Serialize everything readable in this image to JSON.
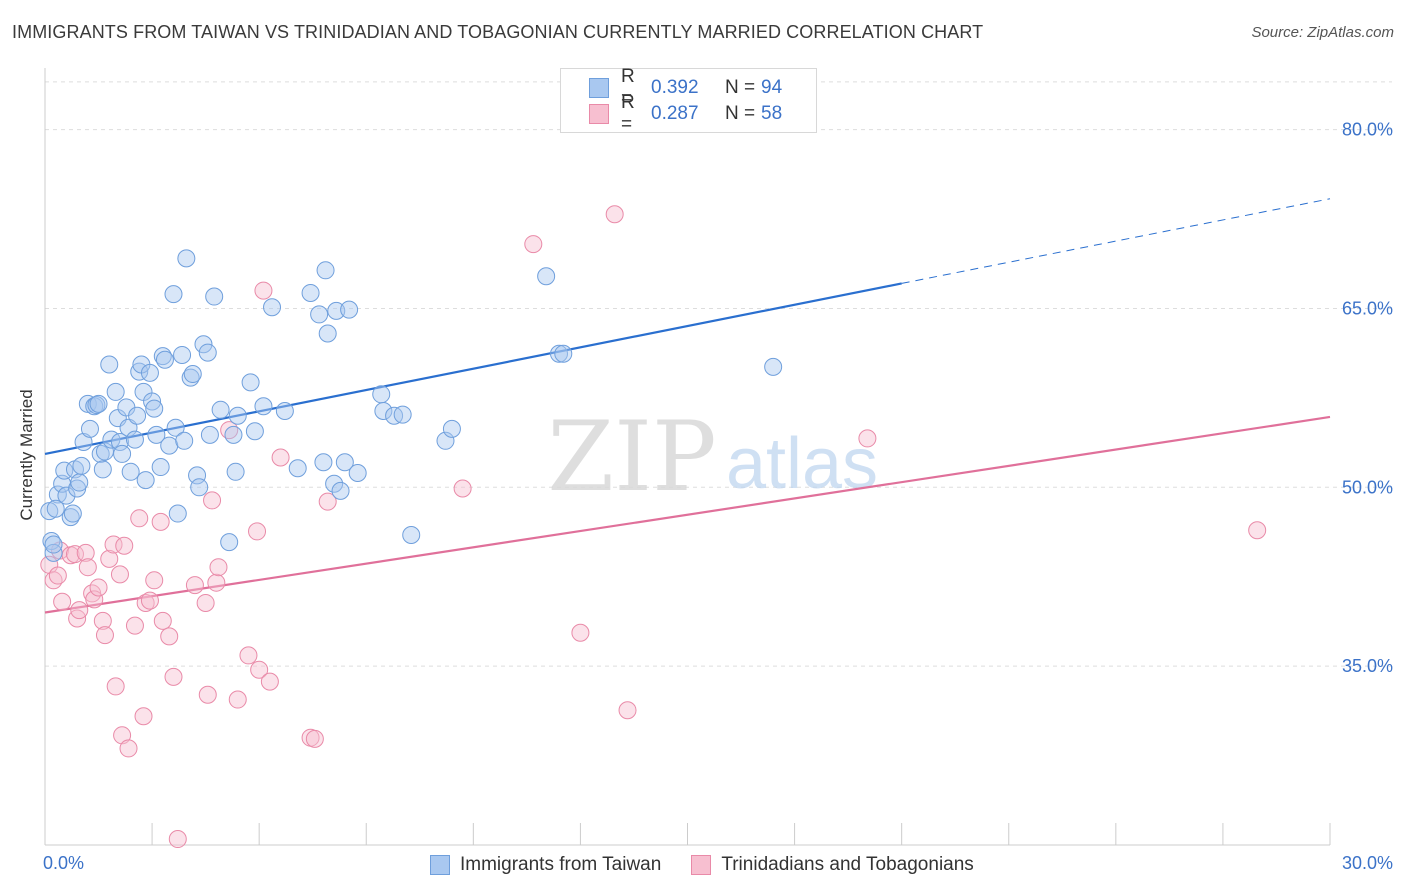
{
  "header": {
    "title": "IMMIGRANTS FROM TAIWAN VS TRINIDADIAN AND TOBAGONIAN CURRENTLY MARRIED CORRELATION CHART",
    "source": "Source: ZipAtlas.com"
  },
  "watermark": {
    "zip": "ZIP",
    "atlas": "atlas"
  },
  "stats_legend": {
    "r_label": "R =",
    "n_label": "N =",
    "rows": [
      {
        "r": "0.392",
        "n": "94"
      },
      {
        "r": "0.287",
        "n": "58"
      }
    ]
  },
  "colors": {
    "taiwan_fill": "#a9c8f0",
    "taiwan_stroke": "#6f9fdc",
    "taiwan_line": "#2a6fcf",
    "trin_fill": "#f7bfd0",
    "trin_stroke": "#e98aa8",
    "trin_line": "#e0709a",
    "axis_text": "#3b72c8",
    "grid": "#dddddd"
  },
  "chart_data": {
    "type": "scatter",
    "title": "IMMIGRANTS FROM TAIWAN VS TRINIDADIAN AND TOBAGONIAN CURRENTLY MARRIED CORRELATION CHART",
    "xlabel": "",
    "ylabel": "Currently Married",
    "xlim": [
      0,
      30
    ],
    "ylim": [
      20,
      85
    ],
    "x_tick_labels": [
      "0.0%",
      "30.0%"
    ],
    "y_ticks": [
      35,
      50,
      65,
      80
    ],
    "y_tick_labels": [
      "35.0%",
      "50.0%",
      "65.0%",
      "80.0%"
    ],
    "grid": true,
    "legend_position": "bottom",
    "series": [
      {
        "name": "Immigrants from Taiwan",
        "color": "#a9c8f0",
        "trend": {
          "x": [
            0,
            20
          ],
          "y": [
            52.8,
            67.1
          ],
          "dashed_extension": {
            "x": [
              20,
              30
            ],
            "y": [
              67.1,
              74.2
            ]
          }
        },
        "points": [
          [
            0.1,
            48.0
          ],
          [
            0.15,
            45.5
          ],
          [
            0.2,
            44.5
          ],
          [
            0.2,
            45.2
          ],
          [
            0.3,
            49.4
          ],
          [
            0.4,
            50.3
          ],
          [
            0.45,
            51.4
          ],
          [
            0.5,
            49.3
          ],
          [
            0.6,
            47.5
          ],
          [
            0.65,
            47.8
          ],
          [
            0.7,
            51.5
          ],
          [
            0.75,
            49.9
          ],
          [
            0.8,
            50.4
          ],
          [
            0.85,
            51.8
          ],
          [
            0.9,
            53.8
          ],
          [
            1.0,
            57.0
          ],
          [
            1.05,
            54.9
          ],
          [
            1.15,
            56.8
          ],
          [
            1.2,
            56.9
          ],
          [
            1.3,
            52.8
          ],
          [
            1.35,
            51.5
          ],
          [
            1.4,
            53.0
          ],
          [
            1.5,
            60.3
          ],
          [
            1.55,
            54.0
          ],
          [
            1.65,
            58.0
          ],
          [
            1.7,
            55.8
          ],
          [
            1.75,
            53.8
          ],
          [
            1.8,
            52.8
          ],
          [
            1.9,
            56.7
          ],
          [
            1.95,
            55.0
          ],
          [
            2.0,
            51.3
          ],
          [
            2.1,
            54.0
          ],
          [
            2.2,
            59.7
          ],
          [
            2.25,
            60.3
          ],
          [
            2.3,
            58.0
          ],
          [
            2.35,
            50.6
          ],
          [
            2.45,
            59.6
          ],
          [
            2.5,
            57.2
          ],
          [
            2.55,
            56.6
          ],
          [
            2.6,
            54.4
          ],
          [
            2.7,
            51.7
          ],
          [
            2.75,
            61.0
          ],
          [
            2.8,
            60.7
          ],
          [
            2.9,
            53.5
          ],
          [
            3.0,
            66.2
          ],
          [
            3.05,
            55.0
          ],
          [
            3.1,
            47.8
          ],
          [
            3.2,
            61.1
          ],
          [
            3.25,
            53.9
          ],
          [
            3.3,
            69.2
          ],
          [
            3.4,
            59.2
          ],
          [
            3.45,
            59.5
          ],
          [
            3.55,
            51.0
          ],
          [
            3.6,
            50.0
          ],
          [
            3.7,
            62.0
          ],
          [
            3.8,
            61.3
          ],
          [
            3.85,
            54.4
          ],
          [
            3.95,
            66.0
          ],
          [
            4.1,
            56.5
          ],
          [
            4.3,
            45.4
          ],
          [
            4.4,
            54.4
          ],
          [
            4.45,
            51.3
          ],
          [
            4.5,
            56.0
          ],
          [
            4.8,
            58.8
          ],
          [
            4.9,
            54.7
          ],
          [
            5.1,
            56.8
          ],
          [
            5.3,
            65.1
          ],
          [
            5.6,
            56.4
          ],
          [
            5.9,
            51.6
          ],
          [
            6.2,
            66.3
          ],
          [
            6.4,
            64.5
          ],
          [
            6.5,
            52.1
          ],
          [
            6.55,
            68.2
          ],
          [
            6.6,
            62.9
          ],
          [
            6.75,
            50.3
          ],
          [
            6.8,
            64.8
          ],
          [
            6.9,
            49.7
          ],
          [
            7.0,
            52.1
          ],
          [
            7.1,
            64.9
          ],
          [
            7.3,
            51.2
          ],
          [
            7.85,
            57.8
          ],
          [
            7.9,
            56.4
          ],
          [
            8.15,
            56.0
          ],
          [
            8.35,
            56.1
          ],
          [
            8.55,
            46.0
          ],
          [
            9.35,
            53.9
          ],
          [
            9.5,
            54.9
          ],
          [
            11.7,
            67.7
          ],
          [
            12.0,
            61.2
          ],
          [
            12.1,
            61.2
          ],
          [
            17.0,
            60.1
          ],
          [
            0.25,
            48.2
          ],
          [
            1.25,
            57.0
          ],
          [
            2.15,
            56.0
          ]
        ]
      },
      {
        "name": "Trinidadians and Tobagonians",
        "color": "#f7bfd0",
        "trend": {
          "x": [
            0,
            30
          ],
          "y": [
            39.5,
            55.9
          ]
        },
        "points": [
          [
            0.1,
            43.5
          ],
          [
            0.2,
            42.2
          ],
          [
            0.3,
            42.6
          ],
          [
            0.35,
            44.7
          ],
          [
            0.4,
            40.4
          ],
          [
            0.6,
            44.3
          ],
          [
            0.7,
            44.4
          ],
          [
            0.75,
            39.0
          ],
          [
            0.8,
            39.7
          ],
          [
            0.95,
            44.5
          ],
          [
            1.0,
            43.3
          ],
          [
            1.1,
            41.1
          ],
          [
            1.15,
            40.6
          ],
          [
            1.25,
            41.6
          ],
          [
            1.35,
            38.8
          ],
          [
            1.4,
            37.6
          ],
          [
            1.5,
            44.0
          ],
          [
            1.6,
            45.2
          ],
          [
            1.65,
            33.3
          ],
          [
            1.75,
            42.7
          ],
          [
            1.8,
            29.2
          ],
          [
            1.85,
            45.1
          ],
          [
            1.95,
            28.1
          ],
          [
            2.1,
            38.4
          ],
          [
            2.2,
            47.4
          ],
          [
            2.3,
            30.8
          ],
          [
            2.35,
            40.3
          ],
          [
            2.45,
            40.5
          ],
          [
            2.55,
            42.2
          ],
          [
            2.7,
            47.1
          ],
          [
            2.75,
            38.8
          ],
          [
            2.9,
            37.5
          ],
          [
            3.0,
            34.1
          ],
          [
            3.1,
            20.5
          ],
          [
            3.5,
            41.8
          ],
          [
            3.75,
            40.3
          ],
          [
            3.8,
            32.6
          ],
          [
            3.9,
            48.9
          ],
          [
            4.0,
            42.0
          ],
          [
            4.05,
            43.3
          ],
          [
            4.3,
            54.8
          ],
          [
            4.5,
            32.2
          ],
          [
            4.75,
            35.9
          ],
          [
            4.95,
            46.3
          ],
          [
            5.0,
            34.7
          ],
          [
            5.1,
            66.5
          ],
          [
            5.25,
            33.7
          ],
          [
            5.5,
            52.5
          ],
          [
            6.2,
            29.0
          ],
          [
            6.3,
            28.9
          ],
          [
            6.6,
            48.8
          ],
          [
            9.75,
            49.9
          ],
          [
            11.4,
            70.4
          ],
          [
            12.5,
            37.8
          ],
          [
            13.3,
            72.9
          ],
          [
            13.6,
            31.3
          ],
          [
            19.2,
            54.1
          ],
          [
            28.3,
            46.4
          ]
        ]
      }
    ]
  },
  "legend_bottom": {
    "items": [
      {
        "label": "Immigrants from Taiwan"
      },
      {
        "label": "Trinidadians and Tobagonians"
      }
    ]
  }
}
